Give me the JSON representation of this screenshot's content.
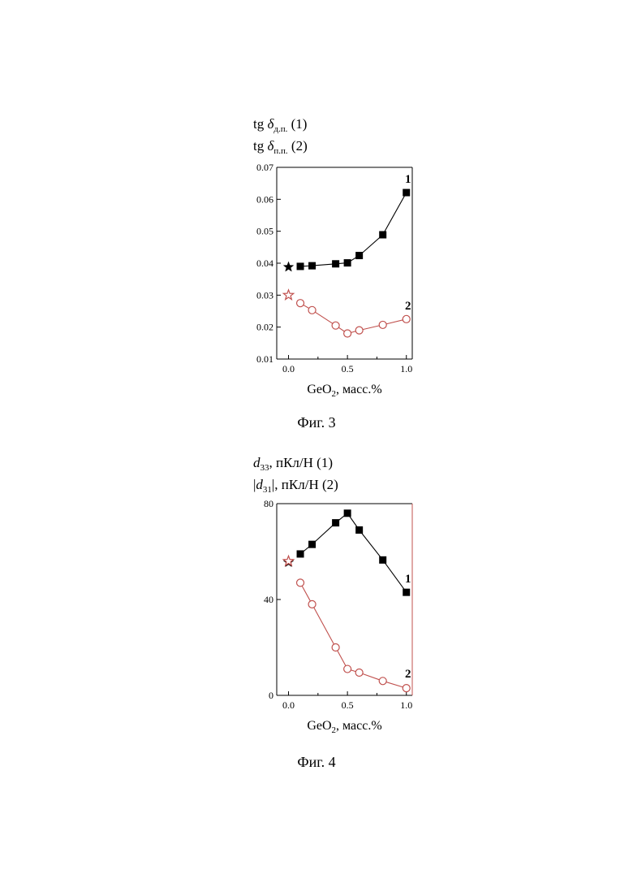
{
  "chart_data": [
    {
      "type": "line",
      "ylabel_lines": [
        {
          "pre": "tg ",
          "sym": "δ",
          "sub": "д.п.",
          "post": " (1)"
        },
        {
          "pre": "tg ",
          "sym": "δ",
          "sub": "п.п.",
          "post": " (2)"
        }
      ],
      "xlabel": {
        "main": "GeO",
        "sub": "2",
        "post": ", масс.%"
      },
      "xlim": [
        -0.1,
        1.05
      ],
      "ylim": [
        0.01,
        0.07
      ],
      "xticks": [
        "0.0",
        "0.5",
        "1.0"
      ],
      "yticks": [
        "0.01",
        "0.02",
        "0.03",
        "0.04",
        "0.05",
        "0.06",
        "0.07"
      ],
      "series": [
        {
          "label": "1",
          "marker": "square",
          "color": "#000000",
          "x": [
            0.1,
            0.2,
            0.4,
            0.5,
            0.6,
            0.8,
            1.0
          ],
          "y": [
            0.039,
            0.0392,
            0.0398,
            0.0401,
            0.0424,
            0.0489,
            0.0621
          ]
        },
        {
          "label": "2",
          "marker": "circle",
          "color": "#c0504d",
          "x": [
            0.1,
            0.2,
            0.4,
            0.5,
            0.6,
            0.8,
            1.0
          ],
          "y": [
            0.0275,
            0.0253,
            0.0205,
            0.018,
            0.019,
            0.0207,
            0.0225
          ]
        }
      ],
      "stars": [
        {
          "x": 0.0,
          "y": 0.0388,
          "color": "#000000",
          "filled": true
        },
        {
          "x": 0.0,
          "y": 0.03,
          "color": "#c0504d",
          "filled": false
        }
      ],
      "caption": "Фиг. 3"
    },
    {
      "type": "line",
      "ylabel_lines": [
        {
          "pre": "",
          "sym": "d",
          "sub": "33",
          "post": ", пКл/Н (1)"
        },
        {
          "pre": "|",
          "sym": "d",
          "sub": "31",
          "post": "|, пКл/Н (2)"
        }
      ],
      "xlabel": {
        "main": "GeO",
        "sub": "2",
        "post": ", масс.%"
      },
      "xlim": [
        -0.1,
        1.05
      ],
      "ylim": [
        0,
        80
      ],
      "xticks": [
        "0.0",
        "0.5",
        "1.0"
      ],
      "yticks": [
        "0",
        "40",
        "80"
      ],
      "series": [
        {
          "label": "1",
          "marker": "square",
          "color": "#000000",
          "x": [
            0.1,
            0.2,
            0.4,
            0.5,
            0.6,
            0.8,
            1.0
          ],
          "y": [
            59,
            63,
            72,
            76,
            69,
            56.5,
            43
          ]
        },
        {
          "label": "2",
          "marker": "circle",
          "color": "#c0504d",
          "x": [
            0.1,
            0.2,
            0.4,
            0.5,
            0.6,
            0.8,
            1.0
          ],
          "y": [
            47,
            38,
            20,
            11,
            9.5,
            6,
            3
          ]
        }
      ],
      "stars": [
        {
          "x": 0.0,
          "y": 55.5,
          "color": "#000000",
          "filled": true
        },
        {
          "x": 0.0,
          "y": 56,
          "color": "#c0504d",
          "filled": false
        }
      ],
      "caption": "Фиг. 4"
    }
  ]
}
